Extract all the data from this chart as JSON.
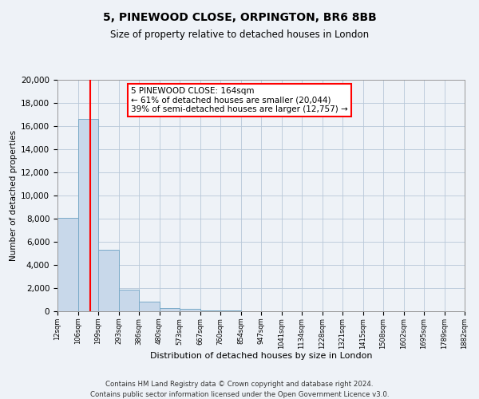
{
  "title_line1": "5, PINEWOOD CLOSE, ORPINGTON, BR6 8BB",
  "title_line2": "Size of property relative to detached houses in London",
  "xlabel": "Distribution of detached houses by size in London",
  "ylabel": "Number of detached properties",
  "bin_labels": [
    "12sqm",
    "106sqm",
    "199sqm",
    "293sqm",
    "386sqm",
    "480sqm",
    "573sqm",
    "667sqm",
    "760sqm",
    "854sqm",
    "947sqm",
    "1041sqm",
    "1134sqm",
    "1228sqm",
    "1321sqm",
    "1415sqm",
    "1508sqm",
    "1602sqm",
    "1695sqm",
    "1789sqm",
    "1882sqm"
  ],
  "bar_values": [
    8100,
    16600,
    5300,
    1850,
    800,
    300,
    200,
    100,
    100,
    0,
    0,
    0,
    0,
    0,
    0,
    0,
    0,
    0,
    0,
    0
  ],
  "bar_color": "#c8d8ea",
  "bar_edge_color": "#7aaac8",
  "ylim": [
    0,
    20000
  ],
  "yticks": [
    0,
    2000,
    4000,
    6000,
    8000,
    10000,
    12000,
    14000,
    16000,
    18000,
    20000
  ],
  "property_line_x": 1.624,
  "property_line_color": "red",
  "annotation_title": "5 PINEWOOD CLOSE: 164sqm",
  "annotation_line1": "← 61% of detached houses are smaller (20,044)",
  "annotation_line2": "39% of semi-detached houses are larger (12,757) →",
  "footer_line1": "Contains HM Land Registry data © Crown copyright and database right 2024.",
  "footer_line2": "Contains public sector information licensed under the Open Government Licence v3.0.",
  "background_color": "#eef2f7",
  "plot_bg_color": "#eef2f7",
  "grid_color": "#b8c8d8"
}
